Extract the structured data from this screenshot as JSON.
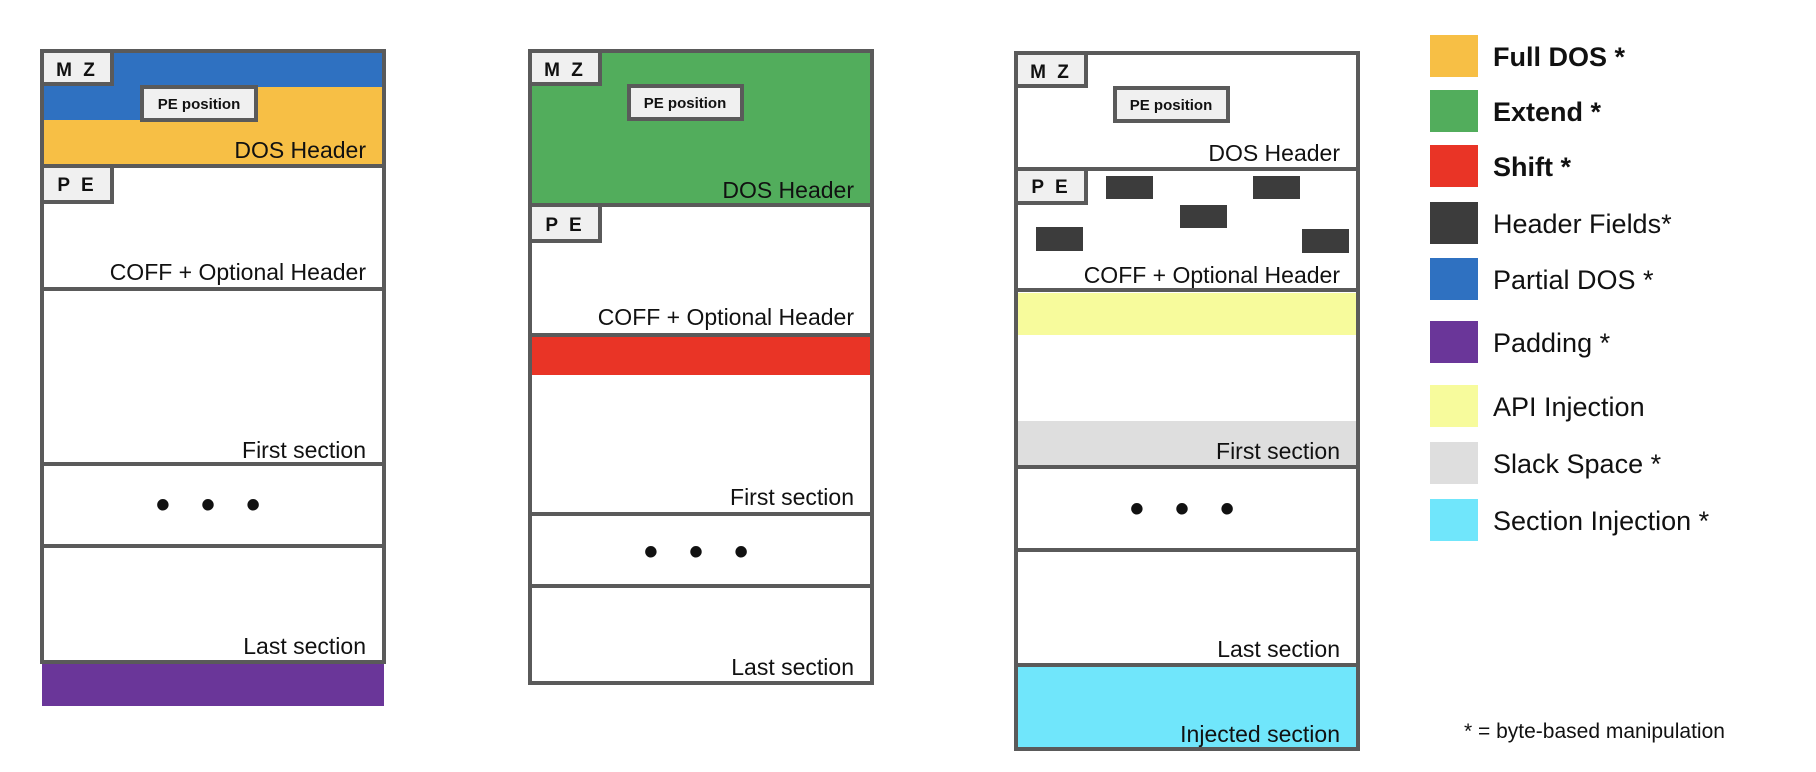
{
  "colors": {
    "full_dos": "#f7bf45",
    "extend": "#52ad5c",
    "shift": "#e93426",
    "header_fields": "#3c3c3c",
    "partial_dos": "#2f71c1",
    "padding": "#6a3699",
    "api_injection": "#f7fb9c",
    "slack_space": "#dedede",
    "section_injection": "#70e6fb",
    "outline": "#5a5a5a"
  },
  "tags": {
    "mz": "M Z",
    "pe": "P E",
    "pe_position": "PE position"
  },
  "diagram1": {
    "dos_header": "DOS Header",
    "coff_header": "COFF + Optional Header",
    "first_section": "First section",
    "ellipsis": "• • •",
    "last_section": "Last section"
  },
  "diagram2": {
    "dos_header": "DOS Header",
    "coff_header": "COFF + Optional Header",
    "first_section": "First section",
    "ellipsis": "• • •",
    "last_section": "Last section"
  },
  "diagram3": {
    "dos_header": "DOS Header",
    "coff_header": "COFF + Optional Header",
    "first_section": "First section",
    "ellipsis": "• • •",
    "last_section": "Last section",
    "injected_section": "Injected section"
  },
  "legend": [
    {
      "label": "Full DOS *",
      "color": "#f7bf45",
      "bold": true,
      "icon": "full-dos-swatch"
    },
    {
      "label": "Extend *",
      "color": "#52ad5c",
      "bold": true,
      "icon": "extend-swatch"
    },
    {
      "label": "Shift *",
      "color": "#e93426",
      "bold": true,
      "icon": "shift-swatch"
    },
    {
      "label": "Header Fields*",
      "color": "#3c3c3c",
      "bold": false,
      "icon": "header-fields-swatch"
    },
    {
      "label": "Partial DOS *",
      "color": "#2f71c1",
      "bold": false,
      "icon": "partial-dos-swatch"
    },
    {
      "label": "Padding *",
      "color": "#6a3699",
      "bold": false,
      "icon": "padding-swatch"
    },
    {
      "label": "API Injection",
      "color": "#f7fb9c",
      "bold": false,
      "icon": "api-injection-swatch"
    },
    {
      "label": "Slack Space *",
      "color": "#dedede",
      "bold": false,
      "icon": "slack-space-swatch"
    },
    {
      "label": "Section Injection *",
      "color": "#70e6fb",
      "bold": false,
      "icon": "section-injection-swatch"
    }
  ],
  "footnote": "* = byte-based manipulation"
}
